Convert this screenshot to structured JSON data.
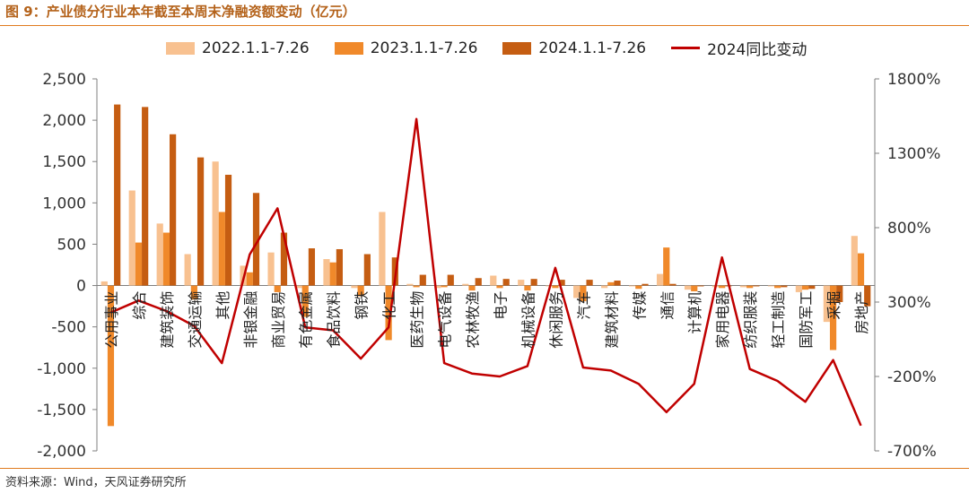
{
  "title": "图 9：产业债分行业本年截至本周末净融资额变动（亿元）",
  "source": "资料来源：Wind，天风证券研究所",
  "colors": {
    "s2022": "#f8c190",
    "s2023": "#f0892a",
    "s2024": "#c55d12",
    "line": "#c00000",
    "accent": "#e07a1e"
  },
  "chart_data": {
    "type": "bar",
    "categories": [
      "公用事业",
      "综合",
      "建筑装饰",
      "交通运输",
      "其他",
      "非银金融",
      "商业贸易",
      "有色金属",
      "食品饮料",
      "钢铁",
      "化工",
      "医药生物",
      "电气设备",
      "农林牧渔",
      "电子",
      "机械设备",
      "休闲服务",
      "汽车",
      "建筑材料",
      "传媒",
      "通信",
      "计算机",
      "家用电器",
      "纺织服装",
      "轻工制造",
      "国防军工",
      "采掘",
      "房地产"
    ],
    "series": [
      {
        "name": "2022.1.1-7.26",
        "values": [
          50,
          1150,
          750,
          380,
          1500,
          240,
          400,
          -30,
          320,
          -30,
          890,
          20,
          -30,
          20,
          120,
          70,
          -10,
          -150,
          -30,
          -10,
          140,
          -50,
          -20,
          -20,
          -10,
          -80,
          -440,
          600
        ]
      },
      {
        "name": "2023.1.1-7.26",
        "values": [
          -1700,
          520,
          640,
          -170,
          890,
          160,
          -80,
          -380,
          280,
          -130,
          -660,
          -20,
          -20,
          -60,
          -30,
          -60,
          -30,
          -190,
          40,
          -40,
          460,
          -70,
          -30,
          -30,
          -30,
          -50,
          -780,
          390
        ]
      },
      {
        "name": "2024.1.1-7.26",
        "values": [
          2190,
          2160,
          1830,
          1550,
          1340,
          1120,
          640,
          450,
          440,
          380,
          340,
          130,
          130,
          90,
          80,
          80,
          70,
          70,
          60,
          20,
          20,
          -10,
          -10,
          -10,
          -20,
          -40,
          -200,
          -250
        ]
      },
      {
        "name": "2024同比变动",
        "axis": "right",
        "values": [
          230,
          310,
          240,
          140,
          -110,
          620,
          930,
          130,
          110,
          -80,
          130,
          1530,
          -110,
          -180,
          -200,
          -130,
          530,
          -140,
          -160,
          -250,
          -440,
          -250,
          600,
          -150,
          -230,
          -370,
          -90,
          -530
        ]
      }
    ],
    "ylim": [
      -2000,
      2500
    ],
    "yticks": [
      "2,500",
      "2,000",
      "1,500",
      "1,000",
      "500",
      "0",
      "-500",
      "-1,000",
      "-1,500",
      "-2,000"
    ],
    "y2lim": [
      -700,
      1800
    ],
    "y2ticks": [
      "1800%",
      "1300%",
      "800%",
      "300%",
      "-200%",
      "-700%"
    ],
    "legend_position": "top",
    "grid": false
  }
}
